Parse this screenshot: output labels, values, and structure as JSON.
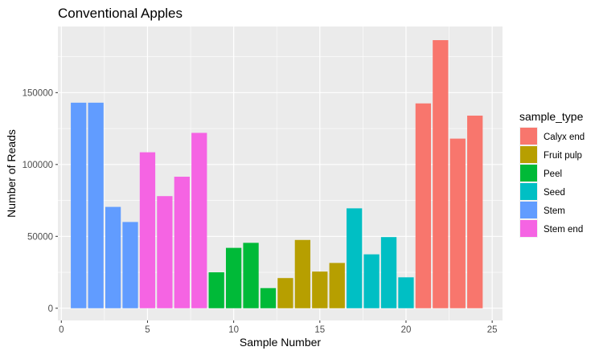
{
  "chart_data": {
    "type": "bar",
    "title": "Conventional Apples",
    "xlabel": "Sample Number",
    "ylabel": "Number of Reads",
    "xlim": [
      -0.2,
      25.6
    ],
    "ylim": [
      -8500,
      196000
    ],
    "xticks": [
      0,
      5,
      10,
      15,
      20,
      25
    ],
    "yticks": [
      0,
      50000,
      100000,
      150000
    ],
    "ytick_labels": [
      "0",
      "50000",
      "100000",
      "150000"
    ],
    "grid": true,
    "legend": {
      "title": "sample_type",
      "position": "right",
      "entries": [
        {
          "name": "Calyx end",
          "color": "#F8766D"
        },
        {
          "name": "Fruit pulp",
          "color": "#B79F00"
        },
        {
          "name": "Peel",
          "color": "#00BA38"
        },
        {
          "name": "Seed",
          "color": "#00BFC4"
        },
        {
          "name": "Stem",
          "color": "#619CFF"
        },
        {
          "name": "Stem end",
          "color": "#F564E3"
        }
      ]
    },
    "bars": [
      {
        "x": 1,
        "value": 143000,
        "sample_type": "Stem"
      },
      {
        "x": 2,
        "value": 143000,
        "sample_type": "Stem"
      },
      {
        "x": 3,
        "value": 70500,
        "sample_type": "Stem"
      },
      {
        "x": 4,
        "value": 60000,
        "sample_type": "Stem"
      },
      {
        "x": 5,
        "value": 108500,
        "sample_type": "Stem end"
      },
      {
        "x": 6,
        "value": 78000,
        "sample_type": "Stem end"
      },
      {
        "x": 7,
        "value": 91500,
        "sample_type": "Stem end"
      },
      {
        "x": 8,
        "value": 122000,
        "sample_type": "Stem end"
      },
      {
        "x": 9,
        "value": 25000,
        "sample_type": "Peel"
      },
      {
        "x": 10,
        "value": 42000,
        "sample_type": "Peel"
      },
      {
        "x": 11,
        "value": 45500,
        "sample_type": "Peel"
      },
      {
        "x": 12,
        "value": 14000,
        "sample_type": "Peel"
      },
      {
        "x": 13,
        "value": 21000,
        "sample_type": "Fruit pulp"
      },
      {
        "x": 14,
        "value": 47500,
        "sample_type": "Fruit pulp"
      },
      {
        "x": 15,
        "value": 25500,
        "sample_type": "Fruit pulp"
      },
      {
        "x": 16,
        "value": 31500,
        "sample_type": "Fruit pulp"
      },
      {
        "x": 17,
        "value": 69500,
        "sample_type": "Seed"
      },
      {
        "x": 18,
        "value": 37500,
        "sample_type": "Seed"
      },
      {
        "x": 19,
        "value": 49500,
        "sample_type": "Seed"
      },
      {
        "x": 20,
        "value": 21500,
        "sample_type": "Seed"
      },
      {
        "x": 21,
        "value": 142500,
        "sample_type": "Calyx end"
      },
      {
        "x": 22,
        "value": 186500,
        "sample_type": "Calyx end"
      },
      {
        "x": 23,
        "value": 118000,
        "sample_type": "Calyx end"
      },
      {
        "x": 24,
        "value": 134000,
        "sample_type": "Calyx end"
      }
    ]
  }
}
